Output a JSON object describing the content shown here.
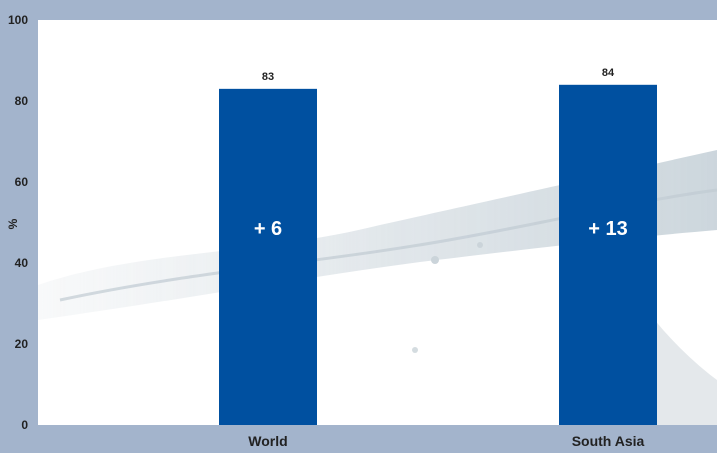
{
  "chart_data": {
    "type": "bar",
    "categories": [
      "World",
      "South Asia"
    ],
    "values": [
      83,
      84
    ],
    "data_labels": [
      "83",
      "84"
    ],
    "annotations": [
      "+ 6",
      "+ 13"
    ],
    "ylabel": "%",
    "ylim": [
      0,
      100
    ],
    "yticks": [
      "0",
      "20",
      "40",
      "60",
      "80",
      "100"
    ],
    "grid": false,
    "bar_color": "#0050a0",
    "plot_background": "#ffffff",
    "page_background": "#a3b4cc"
  }
}
